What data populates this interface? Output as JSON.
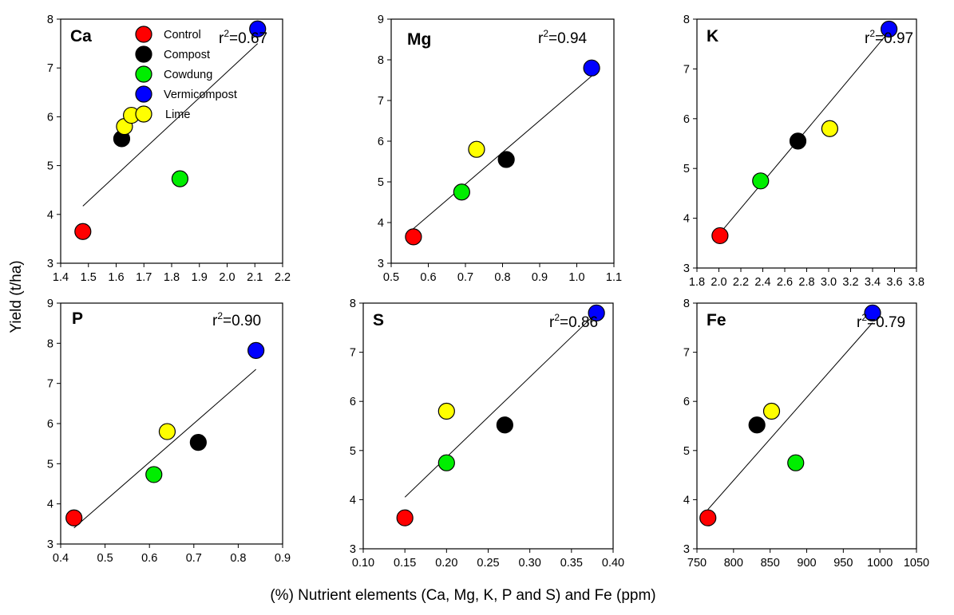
{
  "figure": {
    "ylabel": "Yield (t/ha)",
    "xlabel": "(%) Nutrient elements (Ca, Mg, K, P and S) and Fe (ppm)"
  },
  "legend": {
    "entries": [
      {
        "label": "Control",
        "color": "#ff0000"
      },
      {
        "label": "Compost",
        "color": "#000000"
      },
      {
        "label": "Cowdung",
        "color": "#00ee00"
      },
      {
        "label": "Vermicompost",
        "color": "#0000ff"
      },
      {
        "label": "Lime",
        "color": "#ffff00"
      }
    ]
  },
  "chart_data": [
    {
      "type": "scatter",
      "title": "Ca",
      "r2_prefix": "r",
      "r2_exp": "2",
      "r2_value": "=0.67",
      "xlim": [
        1.4,
        2.2
      ],
      "ylim": [
        3,
        8
      ],
      "xticks": [
        "1.4",
        "1.5",
        "1.6",
        "1.7",
        "1.8",
        "1.9",
        "2.0",
        "2.1",
        "2.2"
      ],
      "yticks": [
        "3",
        "4",
        "5",
        "6",
        "7",
        "8"
      ],
      "points": [
        {
          "name": "Control",
          "x": 1.48,
          "y": 3.65
        },
        {
          "name": "Compost",
          "x": 1.62,
          "y": 5.55
        },
        {
          "name": "Cowdung",
          "x": 1.83,
          "y": 4.73
        },
        {
          "name": "Vermicompost",
          "x": 2.11,
          "y": 7.8
        },
        {
          "name": "Lime",
          "x": 1.63,
          "y": 5.8
        },
        {
          "name": "Lime",
          "x": 1.655,
          "y": 6.03
        }
      ],
      "trendline": {
        "x": [
          1.48,
          2.11
        ],
        "y": [
          4.17,
          7.5
        ]
      }
    },
    {
      "type": "scatter",
      "title": "Mg",
      "r2_prefix": "r",
      "r2_exp": "2",
      "r2_value": "=0.94",
      "xlim": [
        0.5,
        1.1
      ],
      "ylim": [
        3,
        9
      ],
      "xticks": [
        "0.5",
        "0.6",
        "0.7",
        "0.8",
        "0.9",
        "1.0",
        "1.1"
      ],
      "yticks": [
        "3",
        "4",
        "5",
        "6",
        "7",
        "8",
        "9"
      ],
      "points": [
        {
          "name": "Control",
          "x": 0.56,
          "y": 3.65
        },
        {
          "name": "Compost",
          "x": 0.81,
          "y": 5.55
        },
        {
          "name": "Cowdung",
          "x": 0.69,
          "y": 4.75
        },
        {
          "name": "Vermicompost",
          "x": 1.04,
          "y": 7.8
        },
        {
          "name": "Lime",
          "x": 0.73,
          "y": 5.8
        }
      ],
      "trendline": {
        "x": [
          0.56,
          1.04
        ],
        "y": [
          3.85,
          7.6
        ]
      }
    },
    {
      "type": "scatter",
      "title": "K",
      "r2_prefix": "r",
      "r2_exp": "2",
      "r2_value": "=0.97",
      "xlim": [
        1.8,
        3.8
      ],
      "ylim": [
        3,
        8
      ],
      "xticks": [
        "1.8",
        "2.0",
        "2.2",
        "2.4",
        "2.6",
        "2.8",
        "3.0",
        "3.2",
        "3.4",
        "3.6",
        "3.8"
      ],
      "yticks": [
        "3",
        "4",
        "5",
        "6",
        "7",
        "8"
      ],
      "points": [
        {
          "name": "Control",
          "x": 2.01,
          "y": 3.65
        },
        {
          "name": "Compost",
          "x": 2.72,
          "y": 5.55
        },
        {
          "name": "Cowdung",
          "x": 2.38,
          "y": 4.75
        },
        {
          "name": "Vermicompost",
          "x": 3.55,
          "y": 7.8
        },
        {
          "name": "Lime",
          "x": 3.01,
          "y": 5.8
        }
      ],
      "trendline": {
        "x": [
          2.01,
          3.55
        ],
        "y": [
          3.7,
          7.75
        ]
      }
    },
    {
      "type": "scatter",
      "title": "P",
      "r2_prefix": "r",
      "r2_exp": "2",
      "r2_value": "=0.90",
      "xlim": [
        0.4,
        0.9
      ],
      "ylim": [
        3,
        9
      ],
      "xticks": [
        "0.4",
        "0.5",
        "0.6",
        "0.7",
        "0.8",
        "0.9"
      ],
      "yticks": [
        "3",
        "4",
        "5",
        "6",
        "7",
        "8",
        "9"
      ],
      "points": [
        {
          "name": "Control",
          "x": 0.43,
          "y": 3.65
        },
        {
          "name": "Compost",
          "x": 0.71,
          "y": 5.53
        },
        {
          "name": "Cowdung",
          "x": 0.61,
          "y": 4.73
        },
        {
          "name": "Vermicompost",
          "x": 0.84,
          "y": 7.82
        },
        {
          "name": "Lime",
          "x": 0.64,
          "y": 5.8
        }
      ],
      "trendline": {
        "x": [
          0.43,
          0.84
        ],
        "y": [
          3.4,
          7.35
        ]
      }
    },
    {
      "type": "scatter",
      "title": "S",
      "r2_prefix": "r",
      "r2_exp": "2",
      "r2_value": "=0.86",
      "xlim": [
        0.1,
        0.4
      ],
      "ylim": [
        3,
        8
      ],
      "xticks": [
        "0.10",
        "0.15",
        "0.20",
        "0.25",
        "0.30",
        "0.35",
        "0.40"
      ],
      "yticks": [
        "3",
        "4",
        "5",
        "6",
        "7",
        "8"
      ],
      "points": [
        {
          "name": "Control",
          "x": 0.15,
          "y": 3.63
        },
        {
          "name": "Compost",
          "x": 0.27,
          "y": 5.52
        },
        {
          "name": "Cowdung",
          "x": 0.2,
          "y": 4.75
        },
        {
          "name": "Vermicompost",
          "x": 0.38,
          "y": 7.8
        },
        {
          "name": "Lime",
          "x": 0.2,
          "y": 5.8
        }
      ],
      "trendline": {
        "x": [
          0.15,
          0.38
        ],
        "y": [
          4.05,
          7.8
        ]
      }
    },
    {
      "type": "scatter",
      "title": "Fe",
      "r2_prefix": "r",
      "r2_exp": "2",
      "r2_value": "=0.79",
      "xlim": [
        750,
        1050
      ],
      "ylim": [
        3,
        8
      ],
      "xticks": [
        "750",
        "800",
        "850",
        "900",
        "950",
        "1000",
        "1050"
      ],
      "yticks": [
        "3",
        "4",
        "5",
        "6",
        "7",
        "8"
      ],
      "points": [
        {
          "name": "Control",
          "x": 765,
          "y": 3.63
        },
        {
          "name": "Compost",
          "x": 832,
          "y": 5.52
        },
        {
          "name": "Cowdung",
          "x": 885,
          "y": 4.75
        },
        {
          "name": "Vermicompost",
          "x": 990,
          "y": 7.8
        },
        {
          "name": "Lime",
          "x": 852,
          "y": 5.8
        }
      ],
      "trendline": {
        "x": [
          765,
          990
        ],
        "y": [
          3.8,
          7.6
        ]
      }
    }
  ]
}
